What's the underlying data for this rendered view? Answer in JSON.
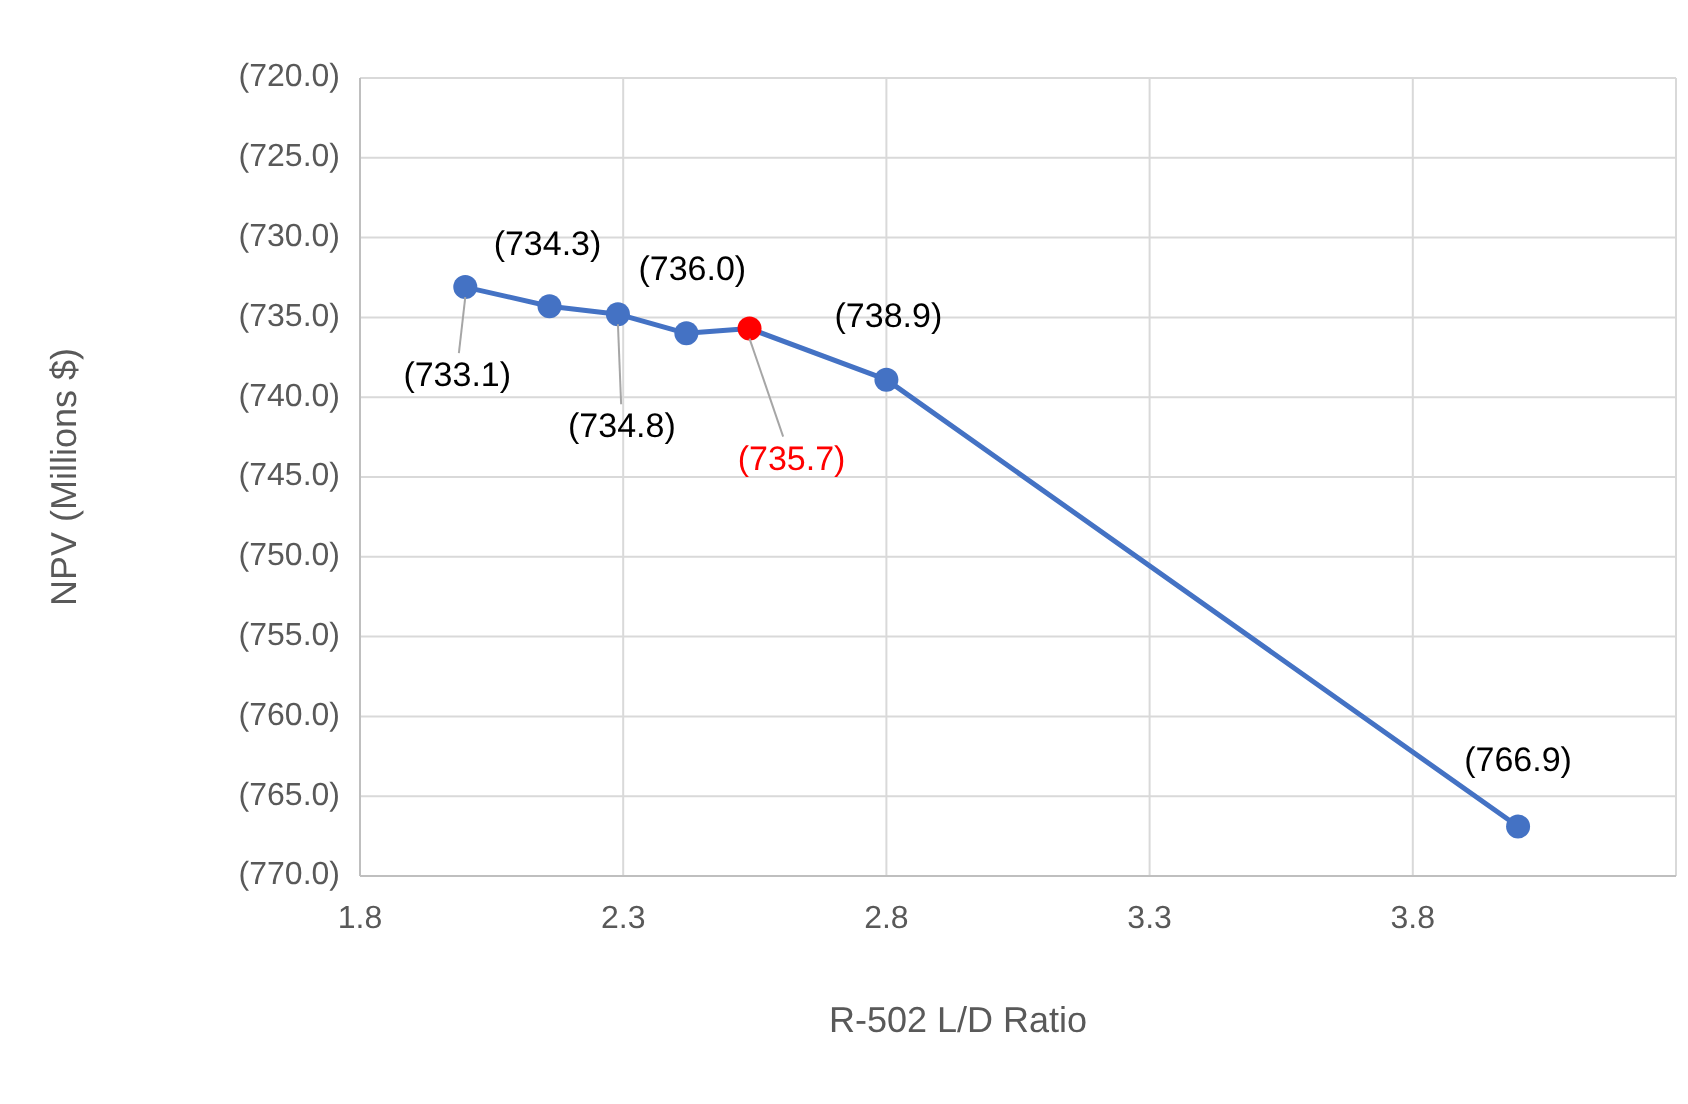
{
  "chart_data": {
    "type": "line",
    "xlabel": "R-502 L/D Ratio",
    "ylabel": "NPV (Millions $)",
    "xlim": [
      1.8,
      4.3
    ],
    "xticks": [
      1.8,
      2.3,
      2.8,
      3.3,
      3.8
    ],
    "ylim": [
      -770,
      -720
    ],
    "yticks": [
      {
        "value": -720,
        "label": "(720.0)"
      },
      {
        "value": -725,
        "label": "(725.0)"
      },
      {
        "value": -730,
        "label": "(730.0)"
      },
      {
        "value": -735,
        "label": "(735.0)"
      },
      {
        "value": -740,
        "label": "(740.0)"
      },
      {
        "value": -745,
        "label": "(745.0)"
      },
      {
        "value": -750,
        "label": "(750.0)"
      },
      {
        "value": -755,
        "label": "(755.0)"
      },
      {
        "value": -760,
        "label": "(760.0)"
      },
      {
        "value": -765,
        "label": "(765.0)"
      },
      {
        "value": -770,
        "label": "(770.0)"
      }
    ],
    "grid": true,
    "marker": "circle",
    "line_style": "solid",
    "series": [
      {
        "color": "#4472c4",
        "x": [
          2.0,
          2.16,
          2.29,
          2.42,
          2.54,
          2.8,
          4.0
        ],
        "values": [
          -733.1,
          -734.3,
          -734.8,
          -736.0,
          -735.7,
          -738.9,
          -766.9
        ],
        "colors": [
          "#4472c4",
          "#4472c4",
          "#4472c4",
          "#4472c4",
          "#ff0000",
          "#4472c4",
          "#4472c4"
        ],
        "value_labels": [
          "(733.1)",
          "(734.3)",
          "(734.8)",
          "(736.0)",
          "(735.7)",
          "(738.9)",
          "(766.9)"
        ]
      }
    ]
  }
}
